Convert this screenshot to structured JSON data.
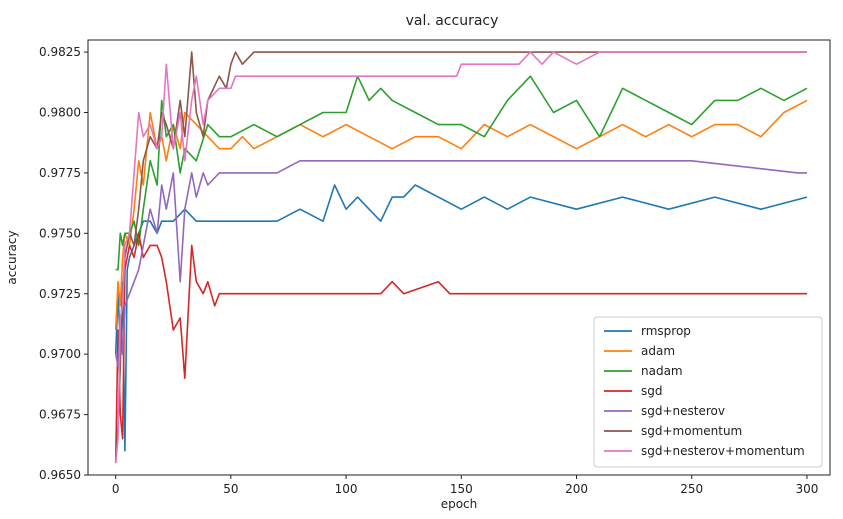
{
  "chart_data": {
    "type": "line",
    "title": "val. accuracy",
    "xlabel": "epoch",
    "ylabel": "accuracy",
    "xlim": [
      -12,
      310
    ],
    "ylim": [
      0.965,
      0.983
    ],
    "xticks": [
      0,
      50,
      100,
      150,
      200,
      250,
      300
    ],
    "xtick_labels": [
      "0",
      "50",
      "100",
      "150",
      "200",
      "250",
      "300"
    ],
    "yticks": [
      0.965,
      0.9675,
      0.97,
      0.9725,
      0.975,
      0.9775,
      0.98,
      0.9825
    ],
    "ytick_labels": [
      "0.9650",
      "0.9675",
      "0.9700",
      "0.9725",
      "0.9750",
      "0.9775",
      "0.9800",
      "0.9825"
    ],
    "grid": false,
    "legend": "lower-right",
    "series": [
      {
        "name": "rmsprop",
        "color": "#1f77b4",
        "x": [
          0,
          1,
          2,
          3,
          4,
          5,
          6,
          8,
          10,
          12,
          15,
          18,
          20,
          25,
          30,
          35,
          40,
          50,
          60,
          70,
          80,
          90,
          95,
          100,
          105,
          110,
          115,
          120,
          125,
          130,
          140,
          150,
          160,
          170,
          180,
          200,
          220,
          240,
          260,
          280,
          300
        ],
        "y": [
          0.97,
          0.9725,
          0.9705,
          0.973,
          0.966,
          0.9735,
          0.974,
          0.9745,
          0.975,
          0.9755,
          0.9755,
          0.975,
          0.9755,
          0.9755,
          0.976,
          0.9755,
          0.9755,
          0.9755,
          0.9755,
          0.9755,
          0.976,
          0.9755,
          0.977,
          0.976,
          0.9765,
          0.976,
          0.9755,
          0.9765,
          0.9765,
          0.977,
          0.9765,
          0.976,
          0.9765,
          0.976,
          0.9765,
          0.976,
          0.9765,
          0.976,
          0.9765,
          0.976,
          0.9765
        ]
      },
      {
        "name": "adam",
        "color": "#ff7f0e",
        "x": [
          0,
          1,
          2,
          3,
          4,
          6,
          8,
          10,
          12,
          15,
          18,
          20,
          22,
          25,
          28,
          30,
          35,
          40,
          45,
          50,
          55,
          60,
          70,
          80,
          90,
          100,
          110,
          120,
          130,
          140,
          150,
          160,
          170,
          180,
          190,
          200,
          210,
          220,
          230,
          240,
          250,
          260,
          270,
          280,
          290,
          300
        ],
        "y": [
          0.971,
          0.973,
          0.972,
          0.974,
          0.975,
          0.9745,
          0.976,
          0.978,
          0.977,
          0.98,
          0.9785,
          0.979,
          0.978,
          0.9795,
          0.9785,
          0.98,
          0.9795,
          0.979,
          0.9785,
          0.9785,
          0.979,
          0.9785,
          0.979,
          0.9795,
          0.979,
          0.9795,
          0.979,
          0.9785,
          0.979,
          0.979,
          0.9785,
          0.9795,
          0.979,
          0.9795,
          0.979,
          0.9785,
          0.979,
          0.9795,
          0.979,
          0.9795,
          0.979,
          0.9795,
          0.9795,
          0.979,
          0.98,
          0.9805
        ]
      },
      {
        "name": "nadam",
        "color": "#2ca02c",
        "x": [
          0,
          1,
          2,
          3,
          4,
          6,
          8,
          10,
          12,
          15,
          18,
          20,
          22,
          25,
          28,
          30,
          35,
          40,
          45,
          50,
          60,
          70,
          80,
          90,
          100,
          105,
          110,
          115,
          120,
          130,
          140,
          150,
          160,
          170,
          180,
          190,
          200,
          210,
          220,
          230,
          240,
          250,
          260,
          270,
          280,
          290,
          300
        ],
        "y": [
          0.9735,
          0.9735,
          0.975,
          0.9745,
          0.975,
          0.975,
          0.9755,
          0.9745,
          0.976,
          0.978,
          0.977,
          0.9805,
          0.979,
          0.9795,
          0.9775,
          0.9785,
          0.978,
          0.9795,
          0.979,
          0.979,
          0.9795,
          0.979,
          0.9795,
          0.98,
          0.98,
          0.9815,
          0.9805,
          0.981,
          0.9805,
          0.98,
          0.9795,
          0.9795,
          0.979,
          0.9805,
          0.9815,
          0.98,
          0.9805,
          0.979,
          0.981,
          0.9805,
          0.98,
          0.9795,
          0.9805,
          0.9805,
          0.981,
          0.9805,
          0.981
        ]
      },
      {
        "name": "sgd",
        "color": "#d62728",
        "x": [
          0,
          1,
          2,
          3,
          4,
          6,
          8,
          10,
          12,
          15,
          18,
          20,
          22,
          25,
          28,
          30,
          33,
          35,
          38,
          40,
          43,
          45,
          50,
          60,
          80,
          100,
          115,
          120,
          125,
          140,
          145,
          150,
          160,
          200,
          250,
          300
        ],
        "y": [
          0.9655,
          0.971,
          0.9675,
          0.9665,
          0.9735,
          0.9745,
          0.974,
          0.975,
          0.974,
          0.9745,
          0.9745,
          0.974,
          0.973,
          0.971,
          0.9715,
          0.969,
          0.9745,
          0.973,
          0.9725,
          0.973,
          0.972,
          0.9725,
          0.9725,
          0.9725,
          0.9725,
          0.9725,
          0.9725,
          0.973,
          0.9725,
          0.973,
          0.9725,
          0.9725,
          0.9725,
          0.9725,
          0.9725,
          0.9725
        ]
      },
      {
        "name": "sgd+nesterov",
        "color": "#9467bd",
        "x": [
          0,
          1,
          2,
          3,
          4,
          6,
          8,
          10,
          12,
          15,
          18,
          20,
          22,
          25,
          28,
          30,
          33,
          35,
          38,
          40,
          45,
          50,
          55,
          60,
          70,
          80,
          90,
          100,
          150,
          200,
          250,
          296,
          300
        ],
        "y": [
          0.97,
          0.9695,
          0.9715,
          0.97,
          0.972,
          0.9725,
          0.973,
          0.9735,
          0.9745,
          0.976,
          0.975,
          0.977,
          0.976,
          0.9775,
          0.973,
          0.976,
          0.9775,
          0.9765,
          0.9775,
          0.977,
          0.9775,
          0.9775,
          0.9775,
          0.9775,
          0.9775,
          0.978,
          0.978,
          0.978,
          0.978,
          0.978,
          0.978,
          0.9775,
          0.9775
        ]
      },
      {
        "name": "sgd+momentum",
        "color": "#8c564b",
        "x": [
          0,
          1,
          2,
          3,
          4,
          6,
          8,
          10,
          12,
          15,
          18,
          20,
          22,
          25,
          28,
          30,
          33,
          35,
          38,
          40,
          45,
          48,
          50,
          52,
          55,
          60,
          100,
          150,
          200,
          250,
          300
        ],
        "y": [
          0.9655,
          0.967,
          0.9695,
          0.9725,
          0.974,
          0.975,
          0.9745,
          0.976,
          0.978,
          0.979,
          0.9785,
          0.98,
          0.9795,
          0.9785,
          0.9805,
          0.979,
          0.9825,
          0.98,
          0.979,
          0.9805,
          0.9815,
          0.981,
          0.982,
          0.9825,
          0.982,
          0.9825,
          0.9825,
          0.9825,
          0.9825,
          0.9825,
          0.9825
        ]
      },
      {
        "name": "sgd+nesterov+momentum",
        "color": "#e377c2",
        "x": [
          0,
          1,
          2,
          3,
          4,
          6,
          8,
          10,
          12,
          15,
          18,
          20,
          22,
          25,
          28,
          30,
          33,
          35,
          38,
          40,
          45,
          50,
          52,
          55,
          60,
          100,
          148,
          150,
          160,
          175,
          180,
          185,
          190,
          200,
          210,
          220,
          230,
          240,
          250,
          260,
          280,
          300
        ],
        "y": [
          0.9655,
          0.9665,
          0.9715,
          0.972,
          0.9745,
          0.975,
          0.9775,
          0.98,
          0.979,
          0.9795,
          0.9785,
          0.979,
          0.982,
          0.9785,
          0.98,
          0.978,
          0.9805,
          0.9815,
          0.9795,
          0.9805,
          0.981,
          0.981,
          0.9815,
          0.9815,
          0.9815,
          0.9815,
          0.9815,
          0.982,
          0.982,
          0.982,
          0.9825,
          0.982,
          0.9825,
          0.982,
          0.9825,
          0.9825,
          0.9825,
          0.9825,
          0.9825,
          0.9825,
          0.9825,
          0.9825
        ]
      }
    ]
  }
}
